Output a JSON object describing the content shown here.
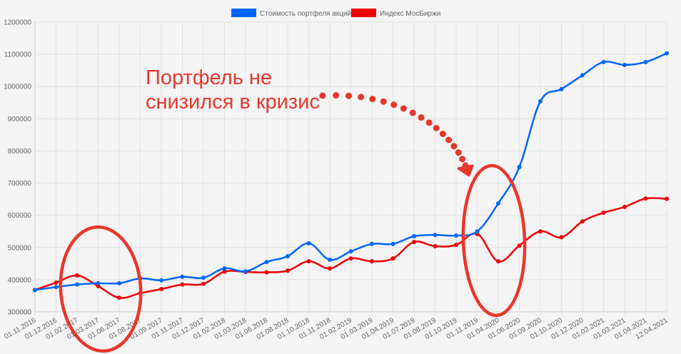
{
  "chart_data": {
    "type": "line",
    "title": "",
    "xlabel": "",
    "ylabel": "",
    "ylim": [
      300000,
      1200000
    ],
    "ytick_step": 100000,
    "grid": true,
    "legend_position": "top",
    "categories": [
      "01.11.2016",
      "01.12.2016",
      "01.02.2017",
      "01.03.2017",
      "01.06.2017",
      "01.08.2017",
      "01.09.2017",
      "01.11.2017",
      "01.12.2017",
      "01.02.2018",
      "01.03.2018",
      "01.06.2018",
      "01.08.2018",
      "01.10.2018",
      "01.11.2018",
      "01.02.2019",
      "01.03.2019",
      "01.04.2019",
      "01.07.2019",
      "01.08.2019",
      "01.10.2019",
      "01.11.2019",
      "01.04.2020",
      "01.06.2020",
      "01.09.2020",
      "01.10.2020",
      "01.12.2020",
      "01.02.2021",
      "01.03.2021",
      "01.04.2021",
      "12.04.2021"
    ],
    "series": [
      {
        "name": "Стоимость портфеля акций",
        "color": "#0066ff",
        "values": [
          368000,
          377000,
          385000,
          389000,
          389000,
          404000,
          398000,
          409000,
          406000,
          435000,
          426000,
          455000,
          473000,
          513000,
          462000,
          488000,
          511000,
          511000,
          535000,
          539000,
          537000,
          550000,
          637000,
          750000,
          954000,
          992000,
          1035000,
          1076000,
          1067000,
          1076000,
          1103000
        ]
      },
      {
        "name": "Индекс МосБиржи",
        "color": "#ee0000",
        "values": [
          368000,
          391000,
          413000,
          380000,
          344000,
          358000,
          371000,
          385000,
          387000,
          425000,
          424000,
          423000,
          428000,
          457000,
          435000,
          466000,
          457000,
          466000,
          517000,
          504000,
          508000,
          542000,
          457000,
          506000,
          550000,
          532000,
          581000,
          608000,
          626000,
          652000,
          651000
        ]
      }
    ],
    "annotations": {
      "text_line1": "Портфель не",
      "text_line2": "снизился в кризис",
      "color": "#e8372c"
    }
  }
}
